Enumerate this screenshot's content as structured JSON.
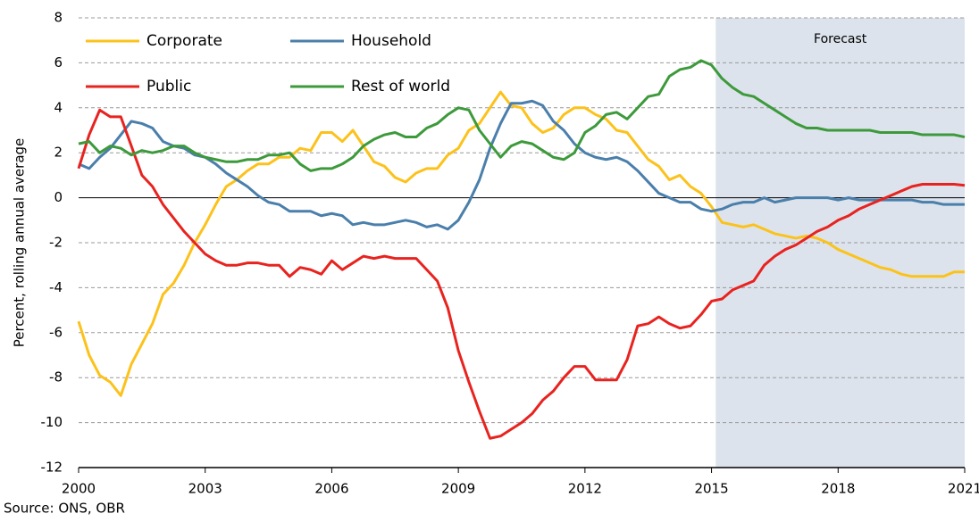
{
  "chart_data": {
    "type": "line",
    "ylabel": "Percent, rolling annual average",
    "source": "Source: ONS, OBR",
    "shade": {
      "label": "Forecast",
      "xlim": [
        2015.1,
        2021
      ],
      "color": "#dce3ec"
    },
    "x": [
      2000,
      2000.25,
      2000.5,
      2000.75,
      2001,
      2001.25,
      2001.5,
      2001.75,
      2002,
      2002.25,
      2002.5,
      2002.75,
      2003,
      2003.25,
      2003.5,
      2003.75,
      2004,
      2004.25,
      2004.5,
      2004.75,
      2005,
      2005.25,
      2005.5,
      2005.75,
      2006,
      2006.25,
      2006.5,
      2006.75,
      2007,
      2007.25,
      2007.5,
      2007.75,
      2008,
      2008.25,
      2008.5,
      2008.75,
      2009,
      2009.25,
      2009.5,
      2009.75,
      2010,
      2010.25,
      2010.5,
      2010.75,
      2011,
      2011.25,
      2011.5,
      2011.75,
      2012,
      2012.25,
      2012.5,
      2012.75,
      2013,
      2013.25,
      2013.5,
      2013.75,
      2014,
      2014.25,
      2014.5,
      2014.75,
      2015,
      2015.25,
      2015.5,
      2015.75,
      2016,
      2016.25,
      2016.5,
      2016.75,
      2017,
      2017.25,
      2017.5,
      2017.75,
      2018,
      2018.25,
      2018.5,
      2018.75,
      2019,
      2019.25,
      2019.5,
      2019.75,
      2020,
      2020.25,
      2020.5,
      2020.75,
      2021
    ],
    "series": [
      {
        "name": "Corporate",
        "color": "#fcc21b",
        "values": [
          -5.5,
          -7,
          -7.9,
          -8.2,
          -8.8,
          -7.4,
          -6.5,
          -5.6,
          -4.3,
          -3.8,
          -3.0,
          -2.0,
          -1.2,
          -0.3,
          0.5,
          0.8,
          1.2,
          1.5,
          1.5,
          1.8,
          1.8,
          2.2,
          2.1,
          2.9,
          2.9,
          2.5,
          3.0,
          2.3,
          1.6,
          1.4,
          0.9,
          0.7,
          1.1,
          1.3,
          1.3,
          1.9,
          2.2,
          3.0,
          3.3,
          4.0,
          4.7,
          4.1,
          4.0,
          3.3,
          2.9,
          3.1,
          3.7,
          4.0,
          4.0,
          3.7,
          3.5,
          3.0,
          2.9,
          2.3,
          1.7,
          1.4,
          0.8,
          1.0,
          0.5,
          0.2,
          -0.4,
          -1.1,
          -1.2,
          -1.3,
          -1.2,
          -1.4,
          -1.6,
          -1.7,
          -1.8,
          -1.7,
          -1.8,
          -2.0,
          -2.3,
          -2.5,
          -2.7,
          -2.9,
          -3.1,
          -3.2,
          -3.4,
          -3.5,
          -3.5,
          -3.5,
          -3.5,
          -3.3,
          -3.3
        ]
      },
      {
        "name": "Household",
        "color": "#4a7fab",
        "values": [
          1.5,
          1.3,
          1.8,
          2.2,
          2.8,
          3.4,
          3.3,
          3.1,
          2.5,
          2.3,
          2.2,
          1.9,
          1.8,
          1.5,
          1.1,
          0.8,
          0.5,
          0.1,
          -0.2,
          -0.3,
          -0.6,
          -0.6,
          -0.6,
          -0.8,
          -0.7,
          -0.8,
          -1.2,
          -1.1,
          -1.2,
          -1.2,
          -1.1,
          -1.0,
          -1.1,
          -1.3,
          -1.2,
          -1.4,
          -1.0,
          -0.2,
          0.8,
          2.2,
          3.3,
          4.2,
          4.2,
          4.3,
          4.1,
          3.4,
          3.0,
          2.4,
          2.0,
          1.8,
          1.7,
          1.8,
          1.6,
          1.2,
          0.7,
          0.2,
          0.0,
          -0.2,
          -0.2,
          -0.5,
          -0.6,
          -0.5,
          -0.3,
          -0.2,
          -0.2,
          0.0,
          -0.2,
          -0.1,
          0.0,
          0.0,
          0.0,
          0.0,
          -0.1,
          0.0,
          -0.1,
          -0.1,
          -0.1,
          -0.1,
          -0.1,
          -0.1,
          -0.2,
          -0.2,
          -0.3,
          -0.3,
          -0.3
        ]
      },
      {
        "name": "Public",
        "color": "#e8231f",
        "values": [
          1.3,
          2.8,
          3.9,
          3.6,
          3.6,
          2.3,
          1.0,
          0.5,
          -0.3,
          -0.9,
          -1.5,
          -2.0,
          -2.5,
          -2.8,
          -3.0,
          -3.0,
          -2.9,
          -2.9,
          -3.0,
          -3.0,
          -3.5,
          -3.1,
          -3.2,
          -3.4,
          -2.8,
          -3.2,
          -2.9,
          -2.6,
          -2.7,
          -2.6,
          -2.7,
          -2.7,
          -2.7,
          -3.2,
          -3.7,
          -4.9,
          -6.8,
          -8.2,
          -9.5,
          -10.7,
          -10.6,
          -10.3,
          -10.0,
          -9.6,
          -9.0,
          -8.6,
          -8.0,
          -7.5,
          -7.5,
          -8.1,
          -8.1,
          -8.1,
          -7.2,
          -5.7,
          -5.6,
          -5.3,
          -5.6,
          -5.8,
          -5.7,
          -5.2,
          -4.6,
          -4.5,
          -4.1,
          -3.9,
          -3.7,
          -3.0,
          -2.6,
          -2.3,
          -2.1,
          -1.8,
          -1.5,
          -1.3,
          -1.0,
          -0.8,
          -0.5,
          -0.3,
          -0.1,
          0.1,
          0.3,
          0.5,
          0.6,
          0.6,
          0.6,
          0.6,
          0.55
        ]
      },
      {
        "name": "Rest of world",
        "color": "#3d9a3b",
        "values": [
          2.4,
          2.5,
          2.0,
          2.3,
          2.2,
          1.9,
          2.1,
          2.0,
          2.1,
          2.3,
          2.3,
          2.0,
          1.8,
          1.7,
          1.6,
          1.6,
          1.7,
          1.7,
          1.9,
          1.9,
          2.0,
          1.5,
          1.2,
          1.3,
          1.3,
          1.5,
          1.8,
          2.3,
          2.6,
          2.8,
          2.9,
          2.7,
          2.7,
          3.1,
          3.3,
          3.7,
          4.0,
          3.9,
          3.0,
          2.4,
          1.8,
          2.3,
          2.5,
          2.4,
          2.1,
          1.8,
          1.7,
          2.0,
          2.9,
          3.2,
          3.7,
          3.8,
          3.5,
          4.0,
          4.5,
          4.6,
          5.4,
          5.7,
          5.8,
          6.1,
          5.9,
          5.3,
          4.9,
          4.6,
          4.5,
          4.2,
          3.9,
          3.6,
          3.3,
          3.1,
          3.1,
          3.0,
          3.0,
          3.0,
          3.0,
          3.0,
          2.9,
          2.9,
          2.9,
          2.9,
          2.8,
          2.8,
          2.8,
          2.8,
          2.7
        ]
      }
    ],
    "xlim": [
      2000,
      2021
    ],
    "xticks": [
      2000,
      2003,
      2006,
      2009,
      2012,
      2015,
      2018,
      2021
    ],
    "ylim": [
      -12,
      8
    ],
    "yticks": [
      -12,
      -10,
      -8,
      -6,
      -4,
      -2,
      0,
      2,
      4,
      6,
      8
    ],
    "grid": true
  }
}
